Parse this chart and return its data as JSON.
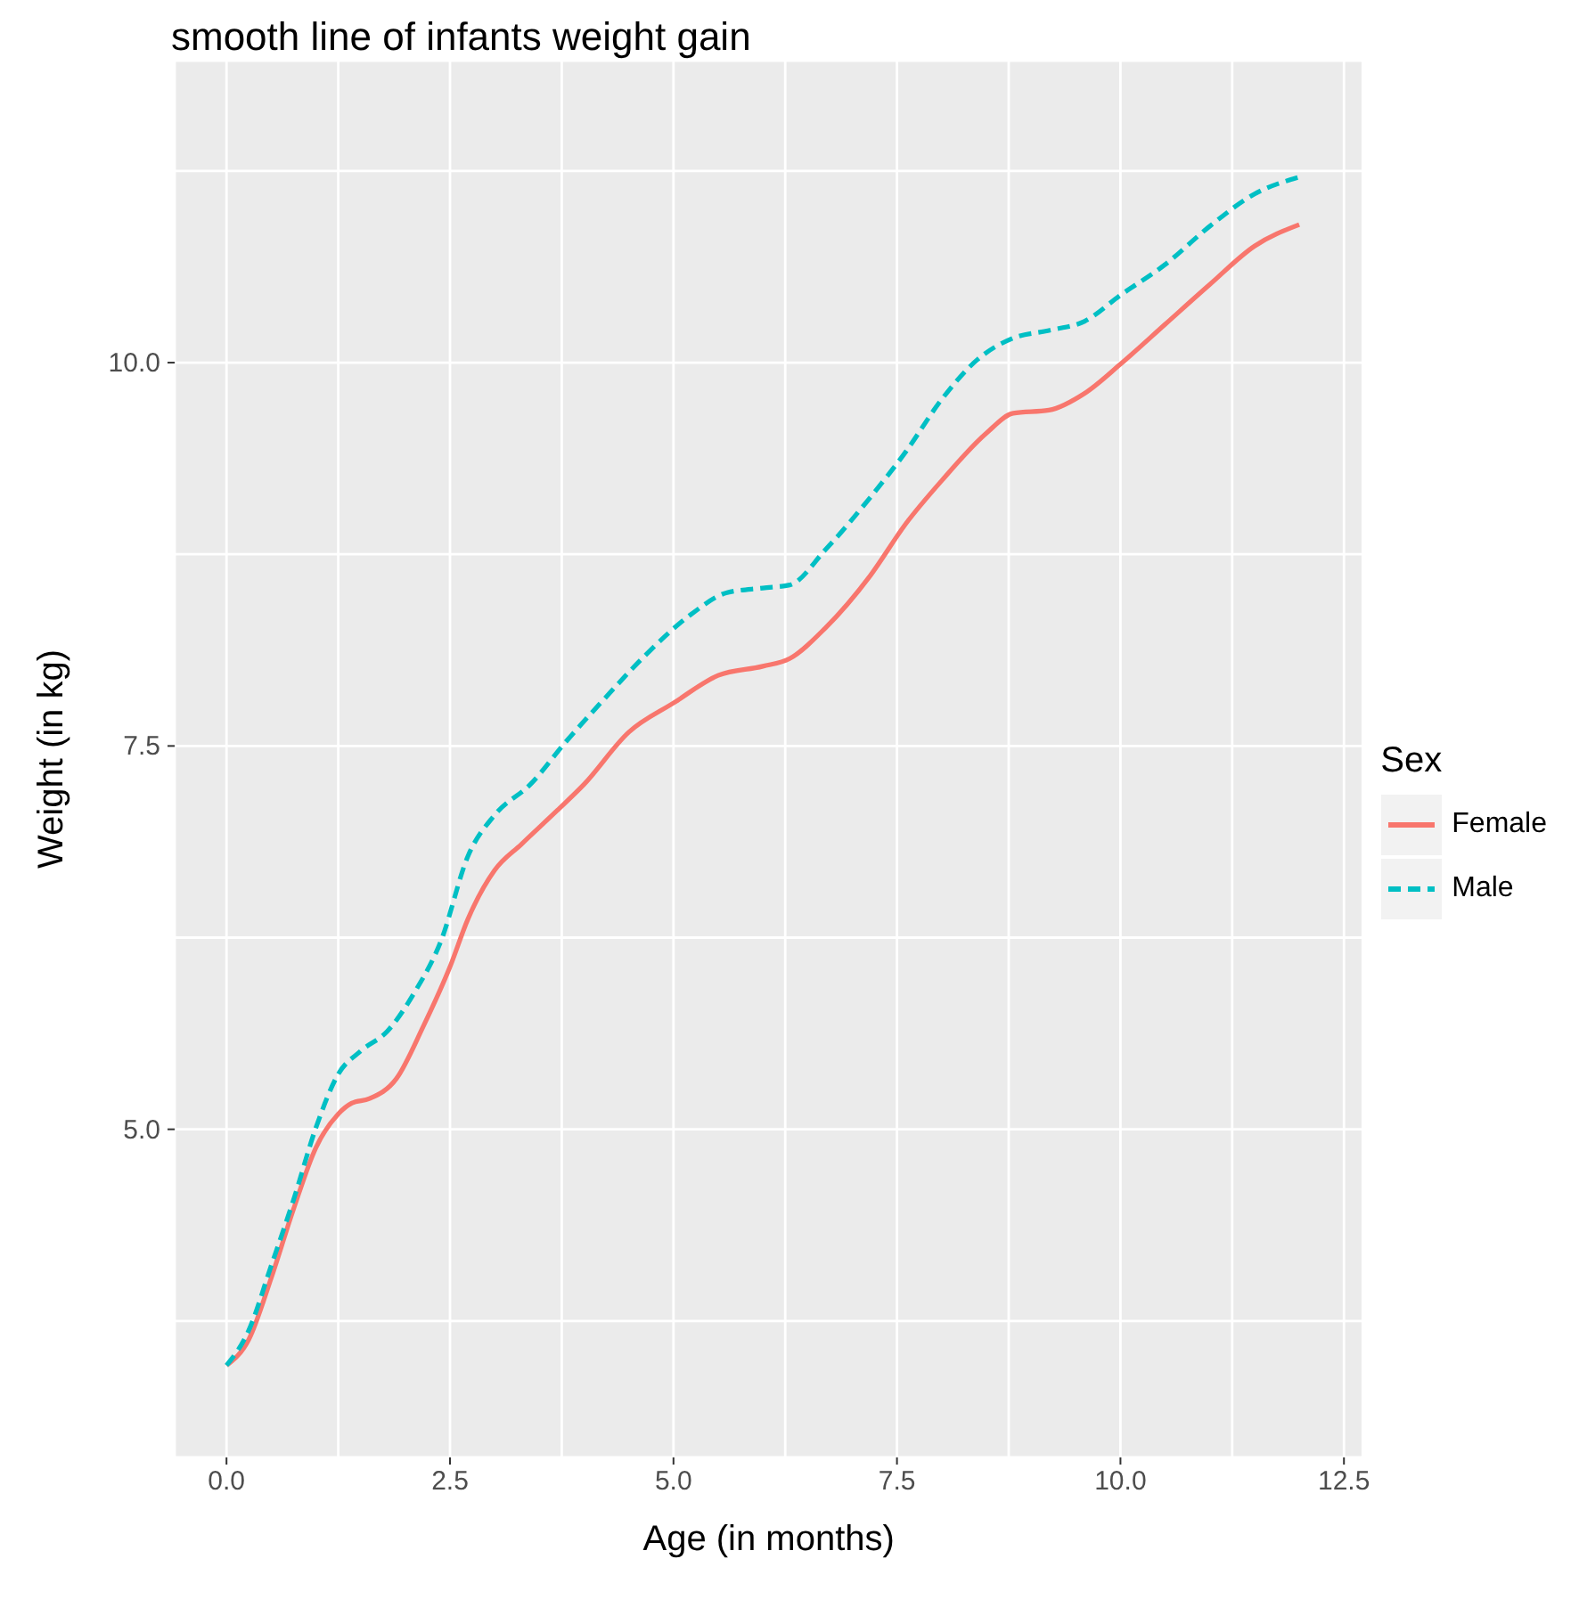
{
  "chart_data": {
    "type": "line",
    "title": "smooth line of infants weight gain",
    "xlabel": "Age (in months)",
    "ylabel": "Weight (in kg)",
    "legend_title": "Sex",
    "legend": "right",
    "grid": true,
    "marker": "none",
    "xlim": [
      -0.58,
      12.71
    ],
    "ylim": [
      2.86,
      11.97
    ],
    "xticks": [
      {
        "value": 1.25,
        "label": null
      },
      {
        "value": 0,
        "label": "0.0"
      },
      {
        "value": 2.5,
        "label": "2.5"
      },
      {
        "value": 3.75,
        "label": null
      },
      {
        "value": 5,
        "label": "5.0"
      },
      {
        "value": 6.25,
        "label": null
      },
      {
        "value": 7.5,
        "label": "7.5"
      },
      {
        "value": 8.75,
        "label": null
      },
      {
        "value": 10,
        "label": "10.0"
      },
      {
        "value": 11.25,
        "label": null
      },
      {
        "value": 12.5,
        "label": "12.5"
      }
    ],
    "yticks": [
      {
        "value": 3.75,
        "label": null
      },
      {
        "value": 5,
        "label": "5.0"
      },
      {
        "value": 6.25,
        "label": null
      },
      {
        "value": 7.5,
        "label": "7.5"
      },
      {
        "value": 8.75,
        "label": null
      },
      {
        "value": 10,
        "label": "10.0"
      },
      {
        "value": 11.25,
        "label": null
      }
    ],
    "series": [
      {
        "name": "Female",
        "color": "#f8766d",
        "line_style": "solid",
        "x": [
          0,
          0.25,
          0.5,
          0.75,
          1,
          1.25,
          1.4,
          1.6,
          1.9,
          2.2,
          2.5,
          2.7,
          3,
          3.3,
          3.7,
          4,
          4.5,
          5,
          5.5,
          6,
          6.3,
          6.7,
          7.2,
          7.6,
          8,
          8.5,
          8.8,
          9.2,
          9.6,
          10,
          10.5,
          11,
          11.5,
          12
        ],
        "values": [
          3.46,
          3.63,
          4.03,
          4.48,
          4.88,
          5.1,
          5.17,
          5.2,
          5.33,
          5.67,
          6.06,
          6.37,
          6.69,
          6.86,
          7.08,
          7.25,
          7.59,
          7.78,
          7.96,
          8.02,
          8.07,
          8.27,
          8.61,
          8.95,
          9.23,
          9.54,
          9.67,
          9.69,
          9.8,
          9.99,
          10.25,
          10.51,
          10.76,
          10.9
        ]
      },
      {
        "name": "Male",
        "color": "#00bfc4",
        "line_style": "dashed",
        "x": [
          0,
          0.25,
          0.5,
          0.75,
          1,
          1.25,
          1.5,
          1.8,
          2.1,
          2.4,
          2.7,
          3,
          3.4,
          3.8,
          4.2,
          4.7,
          5.2,
          5.6,
          6,
          6.3,
          6.7,
          7.2,
          7.6,
          8,
          8.4,
          8.8,
          9.2,
          9.6,
          10,
          10.5,
          11,
          11.5,
          12
        ],
        "values": [
          3.46,
          3.69,
          4.11,
          4.54,
          5.01,
          5.36,
          5.51,
          5.64,
          5.89,
          6.23,
          6.78,
          7.05,
          7.25,
          7.53,
          7.79,
          8.1,
          8.36,
          8.5,
          8.53,
          8.55,
          8.78,
          9.12,
          9.42,
          9.76,
          10.02,
          10.16,
          10.21,
          10.27,
          10.44,
          10.64,
          10.89,
          11.1,
          11.21
        ]
      }
    ]
  }
}
